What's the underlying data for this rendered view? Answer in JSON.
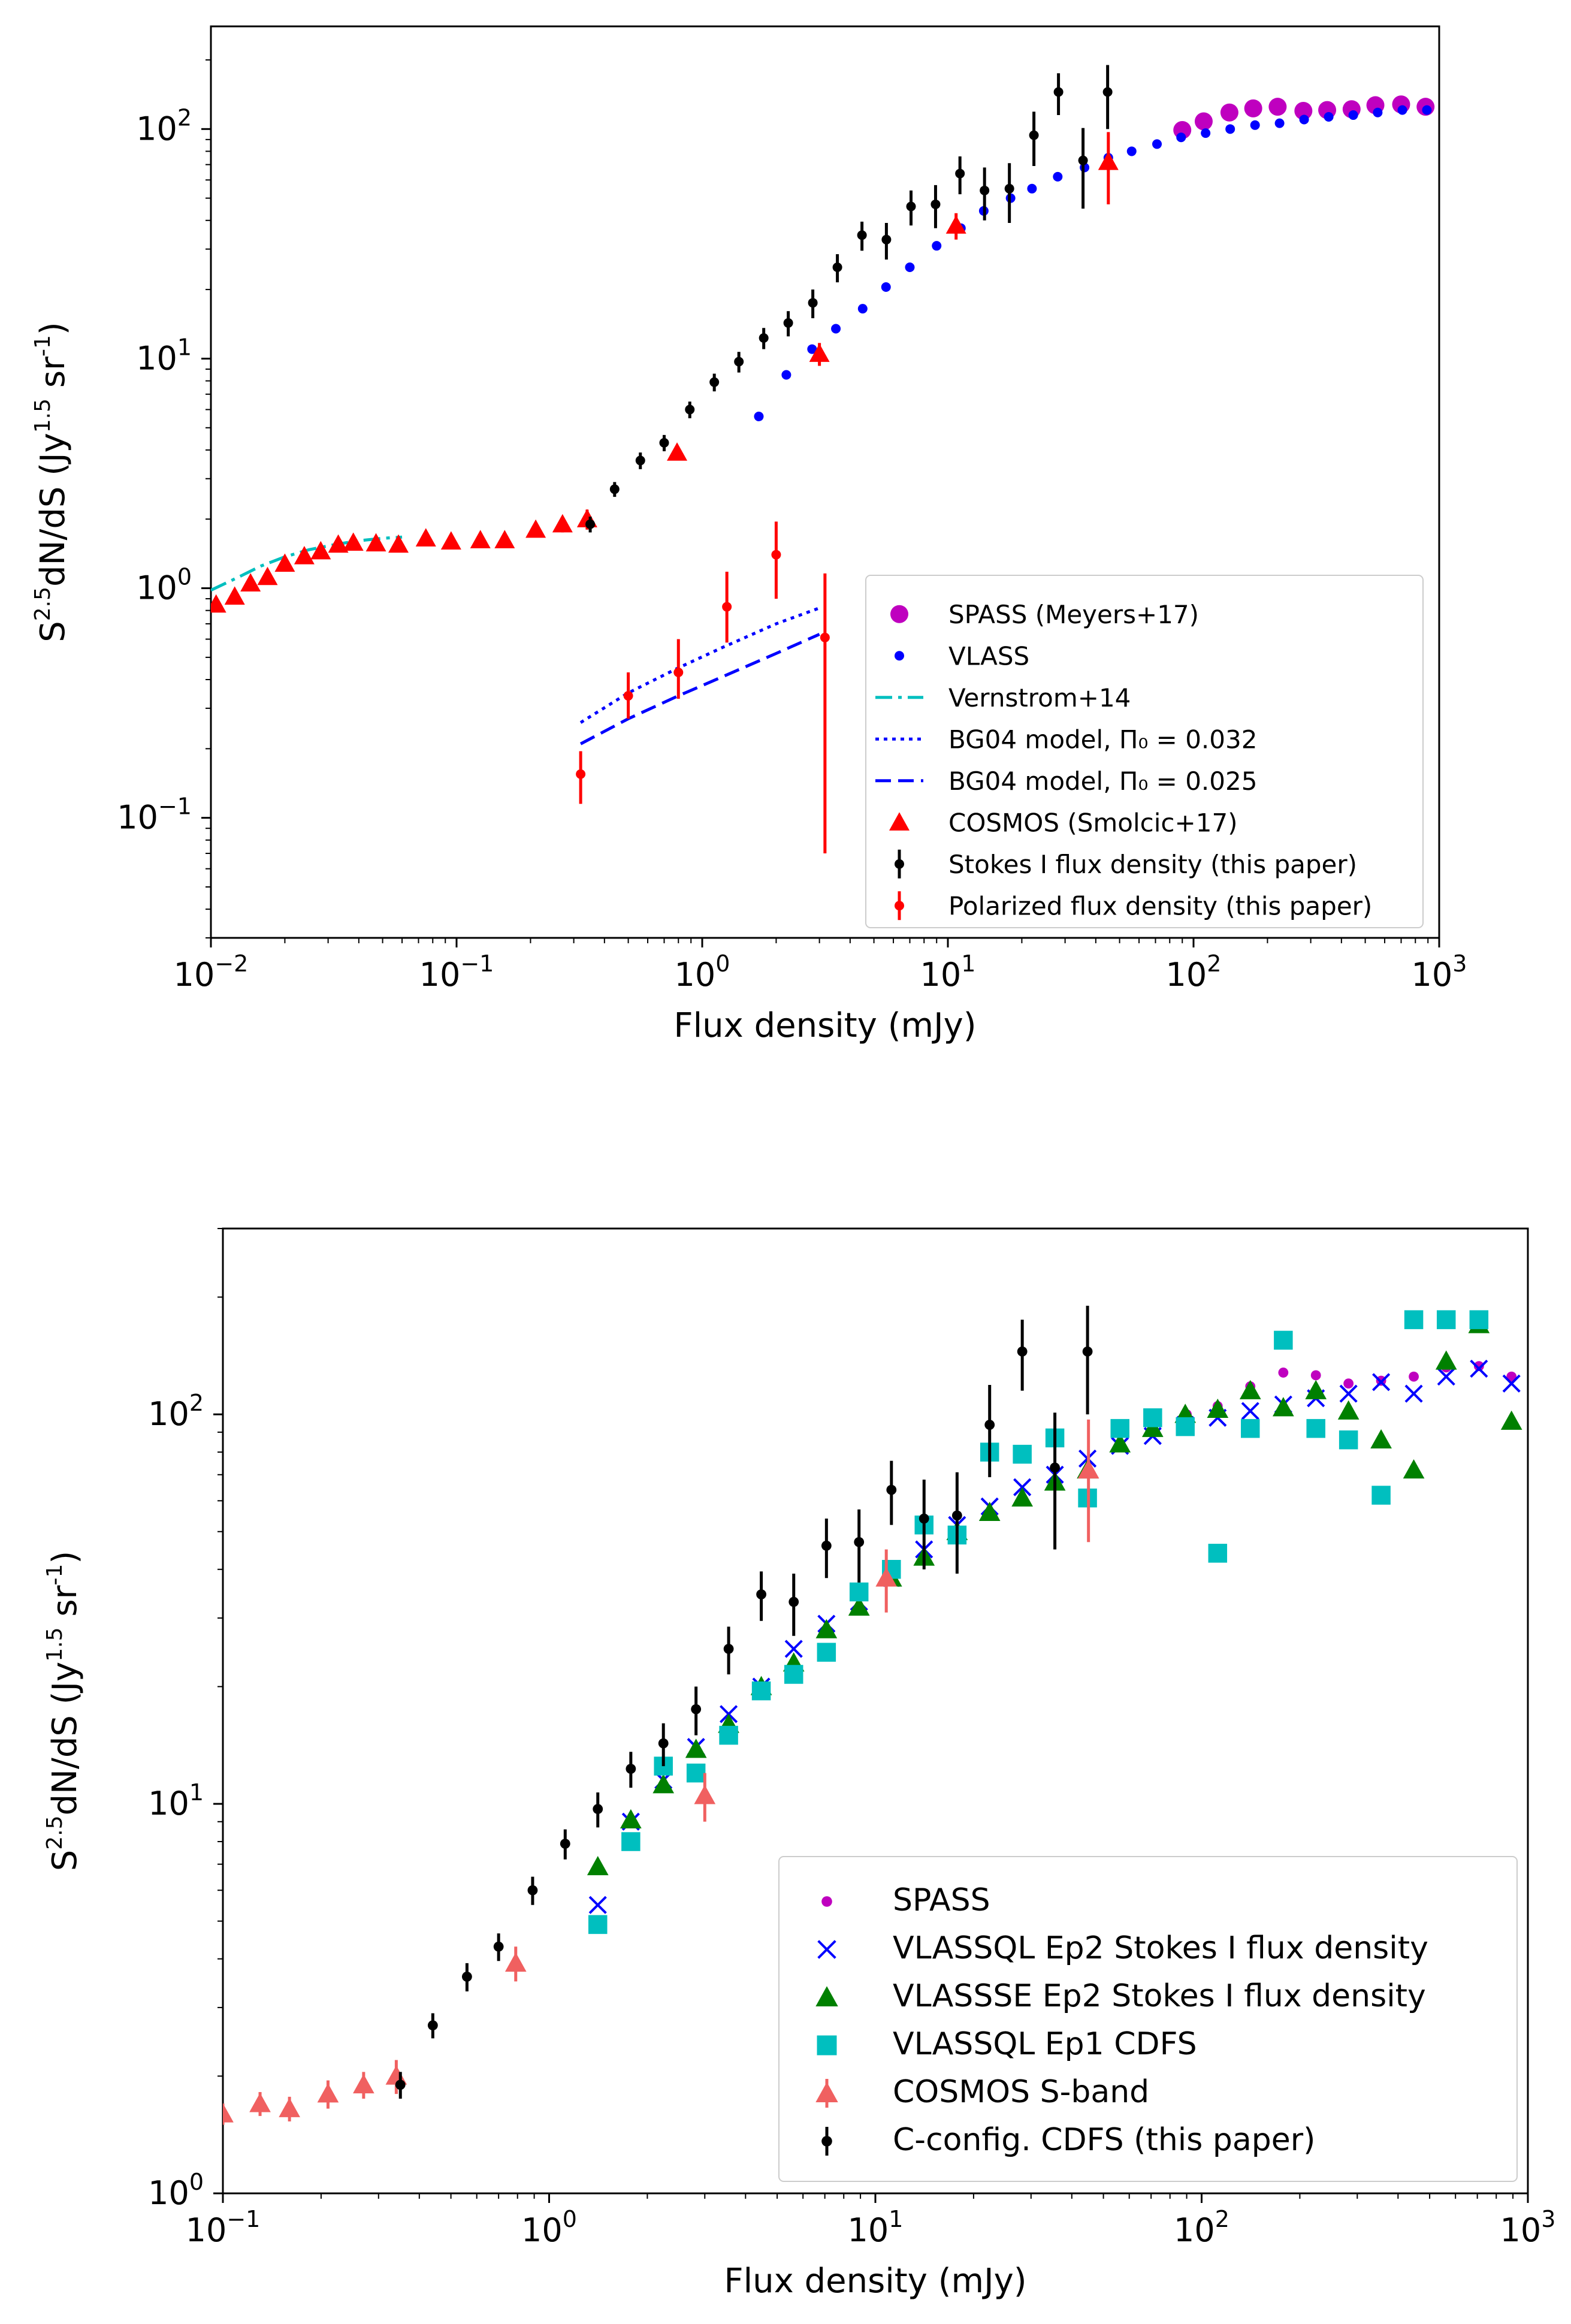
{
  "chart_data": [
    {
      "type": "scatter",
      "xlabel": "Flux density (mJy)",
      "ylabel": "S^{2.5}dN/dS (Jy^{1.5} sr^{-1})",
      "xscale": "log",
      "yscale": "log",
      "xlim": [
        0.01,
        1000
      ],
      "ylim": [
        0.03,
        280
      ],
      "xticks": [
        {
          "base": "10",
          "exp": "−2"
        },
        {
          "base": "10",
          "exp": "−1"
        },
        {
          "base": "10",
          "exp": "0"
        },
        {
          "base": "10",
          "exp": "1"
        },
        {
          "base": "10",
          "exp": "2"
        },
        {
          "base": "10",
          "exp": "3"
        }
      ],
      "yticks": [
        {
          "base": "10",
          "exp": "−1"
        },
        {
          "base": "10",
          "exp": "0"
        },
        {
          "base": "10",
          "exp": "1"
        },
        {
          "base": "10",
          "exp": "2"
        }
      ],
      "legend_position": "lower-right",
      "series": [
        {
          "name": "SPASS (Meyers+17)",
          "marker": "big-circle",
          "color": "#bf00bf",
          "x": [
            90,
            110,
            140,
            175,
            220,
            280,
            350,
            440,
            550,
            700,
            880
          ],
          "y": [
            99,
            108,
            118,
            123,
            125,
            120,
            121,
            122,
            127,
            128,
            125
          ]
        },
        {
          "name": "VLASS",
          "marker": "small-circle",
          "color": "#0000ff",
          "x": [
            1.7,
            2.2,
            2.8,
            3.5,
            4.5,
            5.6,
            7.0,
            9.0,
            11.3,
            14,
            18,
            22,
            28,
            36,
            45,
            56,
            71,
            89,
            112,
            141,
            178,
            224,
            282,
            355,
            447,
            562,
            708,
            891
          ],
          "y": [
            5.6,
            8.5,
            11.0,
            13.5,
            16.5,
            20.5,
            25.0,
            31.0,
            37.0,
            44.0,
            50.0,
            55.0,
            62.0,
            68.0,
            75.0,
            80.0,
            86.0,
            92.0,
            96.0,
            100.0,
            104.0,
            106.0,
            110.0,
            113.0,
            115.0,
            118.0,
            121.0,
            121.0
          ]
        },
        {
          "name": "Vernstrom+14",
          "marker": "dashdot-line",
          "color": "#00bfbf",
          "x": [
            0.01,
            0.013,
            0.016,
            0.02,
            0.025,
            0.032,
            0.04,
            0.05,
            0.06
          ],
          "y": [
            0.98,
            1.12,
            1.25,
            1.37,
            1.47,
            1.55,
            1.61,
            1.65,
            1.67
          ]
        },
        {
          "name": "BG04 model, Π₀ = 0.032",
          "marker": "dotted-line",
          "color": "#0000ff",
          "x": [
            0.32,
            0.5,
            0.8,
            1.2,
            2.0,
            3.0
          ],
          "y": [
            0.26,
            0.35,
            0.45,
            0.55,
            0.7,
            0.82
          ]
        },
        {
          "name": "BG04 model, Π₀ = 0.025",
          "marker": "dashed-line",
          "color": "#0000ff",
          "x": [
            0.32,
            0.5,
            0.8,
            1.2,
            2.0,
            3.0
          ],
          "y": [
            0.21,
            0.27,
            0.34,
            0.41,
            0.52,
            0.63
          ]
        },
        {
          "name": "COSMOS (Smolcic+17)",
          "marker": "triangle",
          "color": "#ff0000",
          "x": [
            0.0105,
            0.0125,
            0.0145,
            0.017,
            0.02,
            0.024,
            0.028,
            0.033,
            0.038,
            0.047,
            0.058,
            0.075,
            0.095,
            0.125,
            0.157,
            0.21,
            0.27,
            0.34,
            0.79,
            3.0,
            10.8,
            45
          ],
          "y": [
            0.85,
            0.92,
            1.05,
            1.12,
            1.28,
            1.38,
            1.45,
            1.55,
            1.58,
            1.57,
            1.55,
            1.65,
            1.6,
            1.62,
            1.62,
            1.8,
            1.9,
            2.0,
            3.9,
            10.5,
            38,
            72
          ],
          "yerr": [
            0,
            0,
            0,
            0,
            0,
            0,
            0,
            0,
            0,
            0,
            0,
            0,
            0,
            0,
            0,
            0.1,
            0.15,
            0.2,
            0.3,
            1.2,
            5,
            25
          ]
        },
        {
          "name": "Stokes I flux density (this paper)",
          "marker": "small-circle-errorbar",
          "color": "#000000",
          "x": [
            0.35,
            0.44,
            0.56,
            0.7,
            0.89,
            1.12,
            1.41,
            1.78,
            2.24,
            2.82,
            3.55,
            4.47,
            5.62,
            7.08,
            8.91,
            11.2,
            14.1,
            17.8,
            22.4,
            28.2,
            35.5,
            44.7
          ],
          "y": [
            1.9,
            2.7,
            3.6,
            4.3,
            6.0,
            7.9,
            9.7,
            12.3,
            14.3,
            17.5,
            25.0,
            34.5,
            33.0,
            46.0,
            47.0,
            64.0,
            54.0,
            55.0,
            94.0,
            145.0,
            73.0,
            145.0
          ],
          "yerr": [
            0.15,
            0.2,
            0.3,
            0.35,
            0.5,
            0.7,
            1.0,
            1.3,
            1.8,
            2.5,
            3.5,
            5.0,
            6.0,
            8.0,
            10.0,
            12.0,
            14.0,
            16.0,
            25.0,
            30.0,
            28.0,
            45.0
          ]
        },
        {
          "name": "Polarized flux density (this paper)",
          "marker": "small-circle-errorbar",
          "color": "#ff0000",
          "x": [
            0.32,
            0.5,
            0.8,
            1.26,
            2.0,
            3.16
          ],
          "y": [
            0.155,
            0.34,
            0.43,
            0.83,
            1.4,
            0.61
          ],
          "yerr_low": [
            0.04,
            0.07,
            0.1,
            0.25,
            0.5,
            0.54
          ],
          "yerr_high": [
            0.04,
            0.09,
            0.17,
            0.35,
            0.55,
            0.55
          ]
        }
      ]
    },
    {
      "type": "scatter",
      "xlabel": "Flux density (mJy)",
      "ylabel": "S^{2.5}dN/dS (Jy^{1.5} sr^{-1})",
      "xscale": "log",
      "yscale": "log",
      "xlim": [
        0.1,
        1000
      ],
      "ylim": [
        1,
        300
      ],
      "xticks": [
        {
          "base": "10",
          "exp": "−1"
        },
        {
          "base": "10",
          "exp": "0"
        },
        {
          "base": "10",
          "exp": "1"
        },
        {
          "base": "10",
          "exp": "2"
        },
        {
          "base": "10",
          "exp": "3"
        }
      ],
      "yticks": [
        {
          "base": "10",
          "exp": "0"
        },
        {
          "base": "10",
          "exp": "1"
        },
        {
          "base": "10",
          "exp": "2"
        }
      ],
      "legend_position": "lower-right",
      "series": [
        {
          "name": "SPASS",
          "marker": "small-circle",
          "color": "#bf00bf",
          "x": [
            90,
            112,
            141,
            178,
            224,
            282,
            355,
            447,
            562,
            708,
            891
          ],
          "y": [
            100,
            105,
            118,
            128,
            126,
            120,
            122,
            125,
            132,
            133,
            125
          ]
        },
        {
          "name": "VLASSQL Ep2 Stokes I flux density",
          "marker": "x",
          "color": "#0000ff",
          "x": [
            1.41,
            1.78,
            2.24,
            2.82,
            3.55,
            4.47,
            5.62,
            7.08,
            8.91,
            11.2,
            14.1,
            17.8,
            22.4,
            28.2,
            35.5,
            44.7,
            56.2,
            70.8,
            89.1,
            112,
            141,
            178,
            224,
            282,
            355,
            447,
            562,
            708,
            891
          ],
          "y": [
            5.5,
            9.0,
            11.5,
            14.0,
            17.0,
            20.0,
            25.0,
            29.0,
            33.0,
            38.0,
            45.0,
            52.0,
            58.0,
            65.0,
            70.0,
            77.0,
            83.0,
            88.0,
            94.0,
            98.0,
            102.0,
            106.0,
            110.0,
            113.0,
            121.0,
            113.0,
            125.0,
            131.0,
            120.0
          ]
        },
        {
          "name": "VLASSSE Ep2 Stokes I flux density",
          "marker": "triangle",
          "color": "#008000",
          "x": [
            1.41,
            1.78,
            2.24,
            2.82,
            3.55,
            4.47,
            5.62,
            7.08,
            8.91,
            11.2,
            14.1,
            17.8,
            22.4,
            28.2,
            35.5,
            44.7,
            56.2,
            70.8,
            89.1,
            112,
            141,
            178,
            224,
            282,
            355,
            447,
            562,
            708,
            891
          ],
          "y": [
            6.9,
            9.1,
            11.2,
            13.8,
            16.0,
            20.0,
            23.0,
            28.0,
            32.0,
            38.0,
            43.0,
            50.0,
            56.0,
            61.0,
            67.0,
            72.0,
            84.0,
            92.0,
            100.0,
            103.0,
            115.0,
            104.0,
            115.0,
            102.0,
            86.0,
            72.0,
            137.0,
            170.0,
            96.0
          ]
        },
        {
          "name": "VLASSQL Ep1 CDFS",
          "marker": "square",
          "color": "#00bfbf",
          "x": [
            1.41,
            1.78,
            2.24,
            2.82,
            3.55,
            4.47,
            5.62,
            7.08,
            8.91,
            11.2,
            14.1,
            17.8,
            22.4,
            28.2,
            35.5,
            44.7,
            56.2,
            70.8,
            89.1,
            112,
            141,
            178,
            224,
            282,
            355,
            447,
            562,
            708
          ],
          "y": [
            4.9,
            8.0,
            12.5,
            12.0,
            15.0,
            19.5,
            21.5,
            24.5,
            35.0,
            40.0,
            52.0,
            49.0,
            80.0,
            79.0,
            87.0,
            61.0,
            92.0,
            98.0,
            93.0,
            44.0,
            92.0,
            155.0,
            92.0,
            86.0,
            62.0,
            175.0,
            175.0,
            175.0
          ]
        },
        {
          "name": "COSMOS S-band",
          "marker": "triangle-errorbar",
          "color": "#f06060",
          "x": [
            0.1,
            0.13,
            0.16,
            0.21,
            0.27,
            0.34,
            0.79,
            3.0,
            10.8,
            45
          ],
          "y": [
            1.6,
            1.7,
            1.65,
            1.8,
            1.9,
            2.0,
            3.9,
            10.5,
            38,
            72
          ],
          "yerr": [
            0.1,
            0.12,
            0.12,
            0.15,
            0.15,
            0.2,
            0.4,
            1.5,
            7,
            25
          ]
        },
        {
          "name": "C-config. CDFS (this paper)",
          "marker": "small-circle-errorbar",
          "color": "#000000",
          "x": [
            0.35,
            0.44,
            0.56,
            0.7,
            0.89,
            1.12,
            1.41,
            1.78,
            2.24,
            2.82,
            3.55,
            4.47,
            5.62,
            7.08,
            8.91,
            11.2,
            14.1,
            17.8,
            22.4,
            28.2,
            35.5,
            44.7
          ],
          "y": [
            1.9,
            2.7,
            3.6,
            4.3,
            6.0,
            7.9,
            9.7,
            12.3,
            14.3,
            17.5,
            25.0,
            34.5,
            33.0,
            46.0,
            47.0,
            64.0,
            54.0,
            55.0,
            94.0,
            145.0,
            73.0,
            145.0
          ],
          "yerr": [
            0.15,
            0.2,
            0.3,
            0.35,
            0.5,
            0.7,
            1.0,
            1.3,
            1.8,
            2.5,
            3.5,
            5.0,
            6.0,
            8.0,
            10.0,
            12.0,
            14.0,
            16.0,
            25.0,
            30.0,
            28.0,
            45.0
          ]
        }
      ]
    }
  ]
}
